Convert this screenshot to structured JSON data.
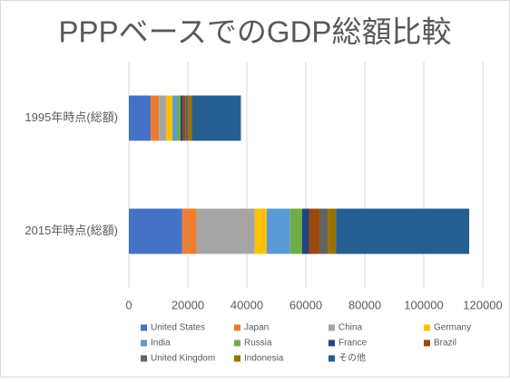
{
  "chart_data": {
    "type": "stacked-bar-horizontal",
    "title": "PPPベースでのGDP総額比較",
    "categories": [
      "1995年時点(総額)",
      "2015年時点(総額)"
    ],
    "series": [
      {
        "name": "United States",
        "color": "#4472c4",
        "values": [
          7400,
          18100
        ]
      },
      {
        "name": "Japan",
        "color": "#ed7d31",
        "values": [
          2800,
          4900
        ]
      },
      {
        "name": "China",
        "color": "#a5a5a5",
        "values": [
          2500,
          19700
        ]
      },
      {
        "name": "Germany",
        "color": "#ffc000",
        "values": [
          2100,
          4000
        ]
      },
      {
        "name": "India",
        "color": "#5b9bd5",
        "values": [
          1500,
          8000
        ]
      },
      {
        "name": "Russia",
        "color": "#70ad47",
        "values": [
          1200,
          4000
        ]
      },
      {
        "name": "France",
        "color": "#264478",
        "values": [
          900,
          2500
        ]
      },
      {
        "name": "Brazil",
        "color": "#9e480e",
        "values": [
          900,
          3400
        ]
      },
      {
        "name": "United Kingdom",
        "color": "#636363",
        "values": [
          900,
          2800
        ]
      },
      {
        "name": "Indonesia",
        "color": "#997300",
        "values": [
          1200,
          2800
        ]
      },
      {
        "name": "その他",
        "color": "#255e91",
        "values": [
          16600,
          45200
        ]
      }
    ],
    "xlim": [
      0,
      120000
    ],
    "xticks": [
      0,
      20000,
      40000,
      60000,
      80000,
      100000,
      120000
    ],
    "grid": true
  }
}
